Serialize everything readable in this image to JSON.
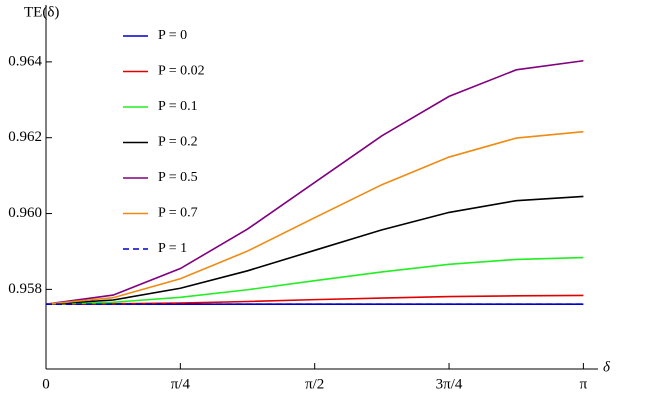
{
  "chart_data": {
    "type": "line",
    "x_label": "δ",
    "y_label": "TE(δ)",
    "x": [
      0,
      0.3927,
      0.7854,
      1.1781,
      1.5708,
      1.9635,
      2.3562,
      2.7489,
      3.1416
    ],
    "series": [
      {
        "name": "P = 0",
        "color": "#0000cc",
        "values": [
          0.95761,
          0.95761,
          0.95761,
          0.95761,
          0.95761,
          0.95761,
          0.95761,
          0.95761,
          0.95761
        ]
      },
      {
        "name": "P = 0.02",
        "color": "#e00000",
        "values": [
          0.95761,
          0.95762,
          0.95764,
          0.95768,
          0.95773,
          0.95777,
          0.95781,
          0.95783,
          0.95784
        ]
      },
      {
        "name": "P = 0.1",
        "color": "#22ee22",
        "values": [
          0.95761,
          0.95766,
          0.95779,
          0.95799,
          0.95823,
          0.95846,
          0.95866,
          0.95879,
          0.95884
        ]
      },
      {
        "name": "P = 0.2",
        "color": "#000000",
        "values": [
          0.95761,
          0.95772,
          0.95803,
          0.95849,
          0.95903,
          0.95957,
          0.96003,
          0.96034,
          0.96045
        ]
      },
      {
        "name": "P = 0.5",
        "color": "#800080",
        "values": [
          0.95761,
          0.95785,
          0.95855,
          0.95959,
          0.96082,
          0.96205,
          0.96309,
          0.96379,
          0.96403
        ]
      },
      {
        "name": "P = 0.7",
        "color": "#f08a10",
        "values": [
          0.95761,
          0.95778,
          0.95828,
          0.95901,
          0.95989,
          0.96076,
          0.96149,
          0.96199,
          0.96216
        ]
      },
      {
        "name": "P = 1",
        "color": "#0000cc",
        "line_style": "dashed",
        "values": [
          0.95761,
          0.95761,
          0.95761,
          0.95761,
          0.95761,
          0.95761,
          0.95761,
          0.95761,
          0.95761
        ]
      }
    ],
    "xlim": [
      0,
      3.227
    ],
    "ylim": [
      0.9559,
      0.9655
    ],
    "xticks": [
      0,
      {
        "value": 0.7854,
        "label": "π/4"
      },
      {
        "value": 1.5708,
        "label": "π/2"
      },
      {
        "value": 2.3562,
        "label": "3π/4"
      },
      {
        "value": 3.1416,
        "label": "π"
      }
    ],
    "yticks": [
      0.958,
      {
        "value": 0.96,
        "label": "0.960"
      },
      0.962,
      0.964
    ],
    "legend": "upper left",
    "grid": false
  }
}
